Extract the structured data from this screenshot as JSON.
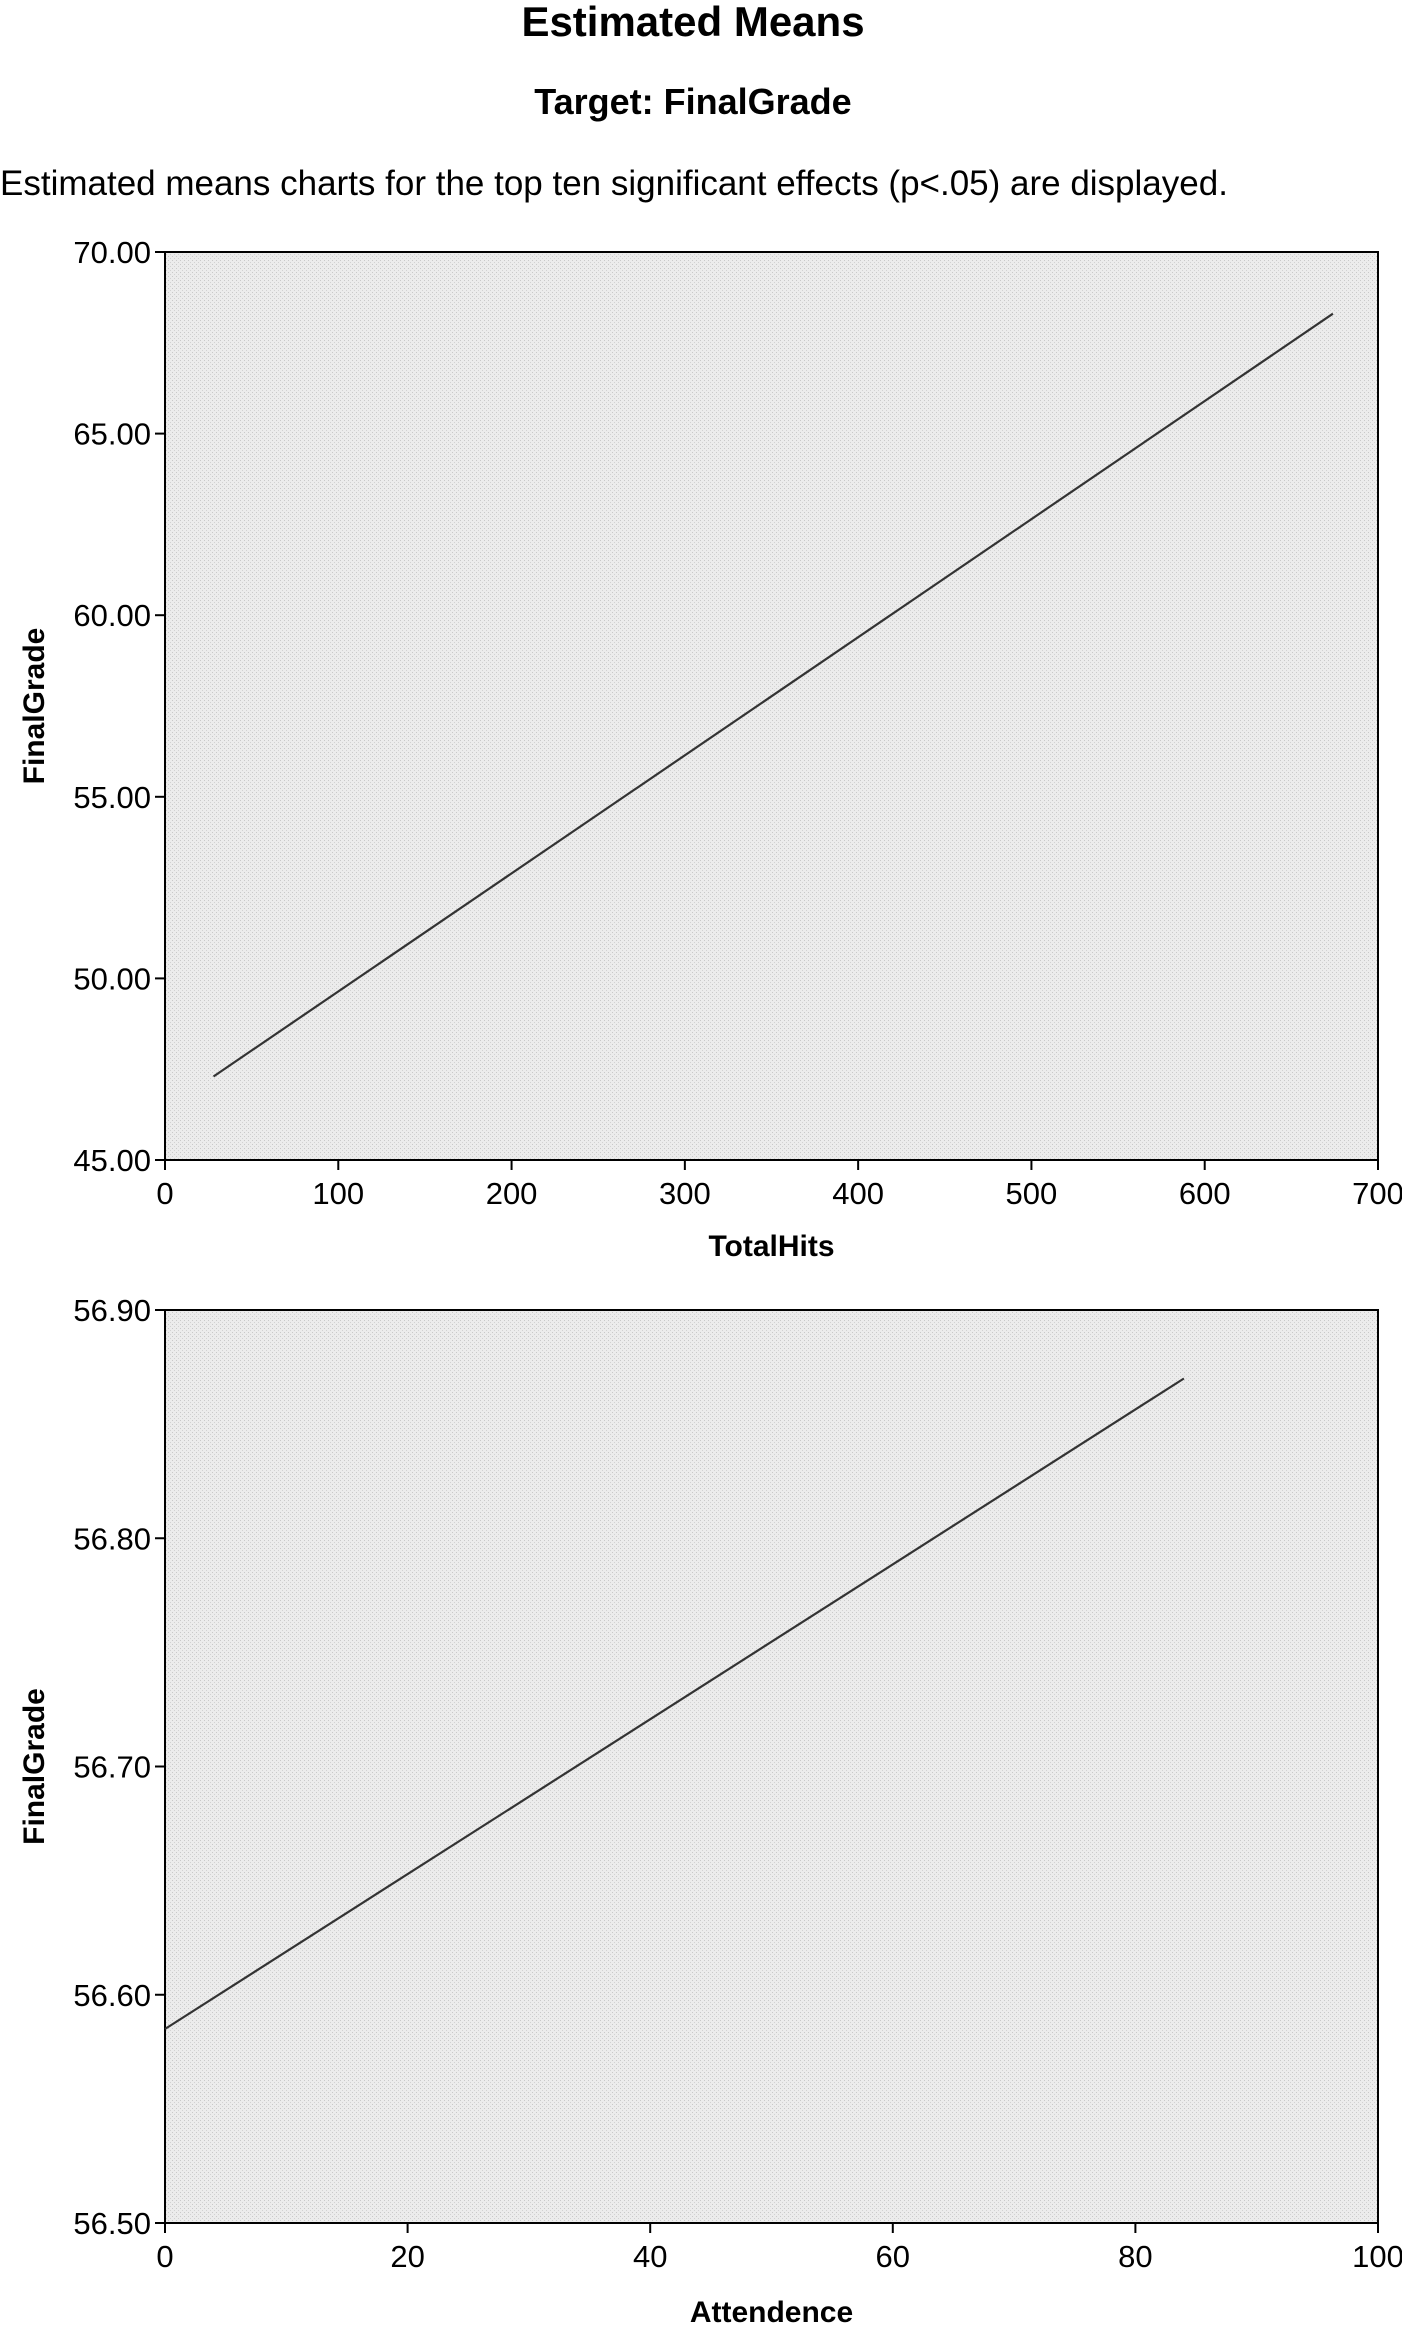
{
  "header": {
    "title": "Estimated Means",
    "subtitle": "Target: FinalGrade",
    "note": "Estimated means charts for the top ten significant effects (p<.05) are displayed."
  },
  "colors": {
    "plot_background": "#ebebeb",
    "line": "#333333",
    "axis": "#000000"
  },
  "chart_data": [
    {
      "type": "line",
      "xlabel": "TotalHits",
      "ylabel": "FinalGrade",
      "xlim": [
        0,
        700
      ],
      "ylim": [
        45.0,
        70.0
      ],
      "xticks": [
        0,
        100,
        200,
        300,
        400,
        500,
        600,
        700
      ],
      "yticks": [
        45.0,
        50.0,
        55.0,
        60.0,
        65.0,
        70.0
      ],
      "xtick_labels": [
        "0",
        "100",
        "200",
        "300",
        "400",
        "500",
        "600",
        "700"
      ],
      "ytick_labels": [
        "45.00",
        "50.00",
        "55.00",
        "60.00",
        "65.00",
        "70.00"
      ],
      "grid": false,
      "series": [
        {
          "x": [
            28,
            674
          ],
          "y": [
            47.3,
            68.3
          ]
        }
      ]
    },
    {
      "type": "line",
      "xlabel": "Attendence",
      "ylabel": "FinalGrade",
      "xlim": [
        0,
        100
      ],
      "ylim": [
        56.5,
        56.9
      ],
      "xticks": [
        0,
        20,
        40,
        60,
        80,
        100
      ],
      "yticks": [
        56.5,
        56.6,
        56.7,
        56.8,
        56.9
      ],
      "xtick_labels": [
        "0",
        "20",
        "40",
        "60",
        "80",
        "100"
      ],
      "ytick_labels": [
        "56.50",
        "56.60",
        "56.70",
        "56.80",
        "56.90"
      ],
      "grid": false,
      "series": [
        {
          "x": [
            0,
            84
          ],
          "y": [
            56.585,
            56.87
          ]
        }
      ]
    }
  ]
}
